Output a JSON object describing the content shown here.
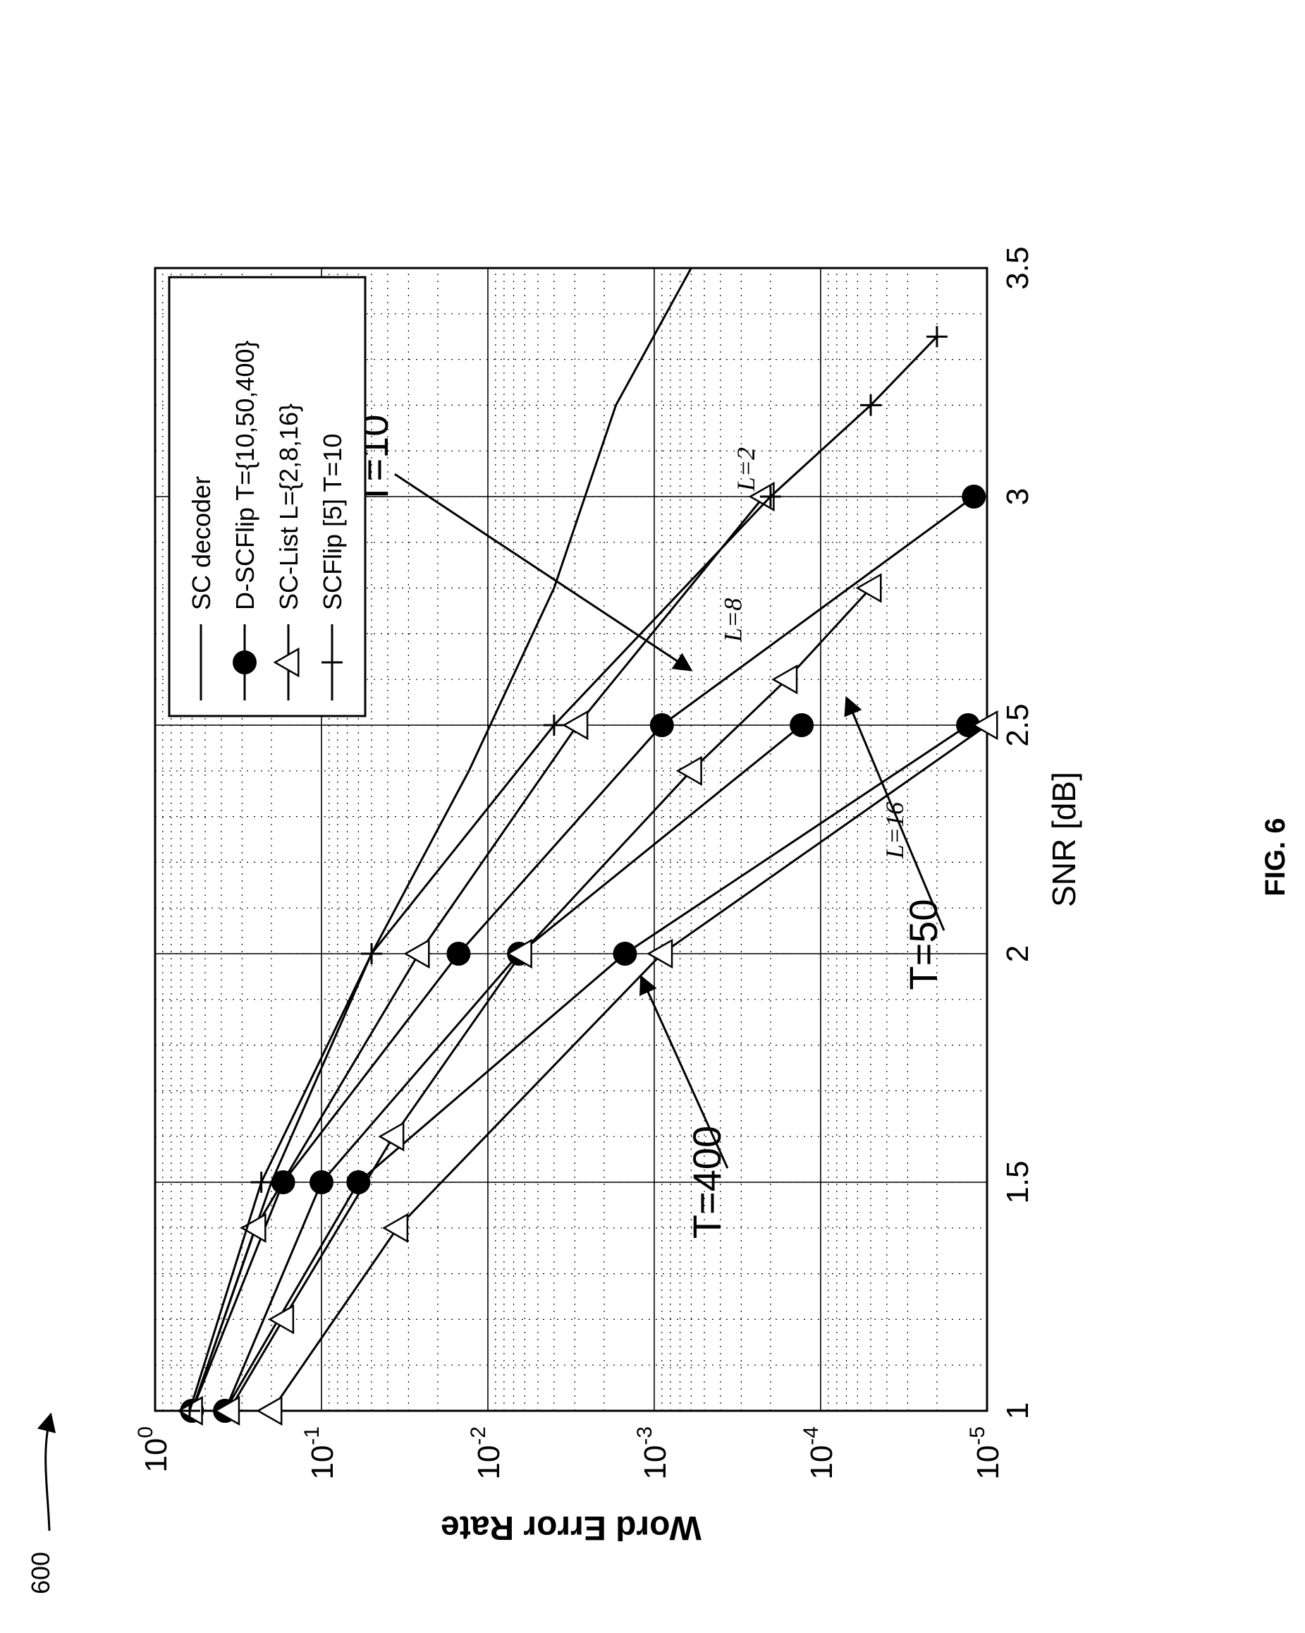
{
  "figure": {
    "number_label": "FIG. 6",
    "reference_numeral": "600"
  },
  "chart_data": {
    "type": "line",
    "xlabel": "SNR [dB]",
    "ylabel": "Word Error Rate",
    "xlim": [
      1,
      3.5
    ],
    "ylim": [
      1e-05,
      1
    ],
    "yscale": "log",
    "grid": true,
    "x_ticks": [
      "1",
      "1.5",
      "2",
      "2.5",
      "3",
      "3.5"
    ],
    "y_ticks": [
      {
        "base": "10",
        "exp": "0",
        "value": 1
      },
      {
        "base": "10",
        "exp": "-1",
        "value": 0.1
      },
      {
        "base": "10",
        "exp": "-2",
        "value": 0.01
      },
      {
        "base": "10",
        "exp": "-3",
        "value": 0.001
      },
      {
        "base": "10",
        "exp": "-4",
        "value": 0.0001
      },
      {
        "base": "10",
        "exp": "-5",
        "value": 1e-05
      }
    ],
    "legend": {
      "placement": "top-right",
      "entries": [
        {
          "label": "SC decoder",
          "marker": "none"
        },
        {
          "label": "D-SCFlip T={10,50,400}",
          "marker": "circle"
        },
        {
          "label": "SC-List L={2,8,16}",
          "marker": "triangle"
        },
        {
          "label": "SCFlip [5] T=10",
          "marker": "plus"
        }
      ]
    },
    "series": [
      {
        "group": "sc",
        "marker": "none",
        "x": [
          1,
          1.5,
          2,
          2.4,
          2.8,
          3.2,
          3.5
        ],
        "y": [
          0.6,
          0.2,
          0.05,
          0.013,
          0.004,
          0.0017,
          0.0006
        ]
      },
      {
        "group": "dscflip",
        "marker": "circle",
        "x": [
          1,
          1.5,
          2,
          2.5,
          3
        ],
        "y": [
          0.6,
          0.17,
          0.015,
          0.0009,
          1.2e-05
        ]
      },
      {
        "group": "dscflip",
        "marker": "circle",
        "x": [
          1,
          1.5,
          2,
          2.5
        ],
        "y": [
          0.38,
          0.1,
          0.0065,
          0.00013
        ]
      },
      {
        "group": "dscflip",
        "marker": "circle",
        "x": [
          1,
          1.5,
          2,
          2.5
        ],
        "y": [
          0.38,
          0.06,
          0.0015,
          1.3e-05
        ]
      },
      {
        "group": "sclist",
        "marker": "triangle",
        "x": [
          1,
          1.4,
          2,
          2.5,
          3
        ],
        "y": [
          0.6,
          0.25,
          0.026,
          0.0029,
          0.00022
        ]
      },
      {
        "group": "sclist",
        "marker": "triangle",
        "x": [
          1,
          1.2,
          1.6,
          2,
          2.4,
          2.6,
          2.8
        ],
        "y": [
          0.36,
          0.17,
          0.037,
          0.0063,
          0.0006,
          0.00016,
          5e-05
        ]
      },
      {
        "group": "sclist",
        "marker": "triangle",
        "x": [
          1,
          1.4,
          2,
          2.5
        ],
        "y": [
          0.2,
          0.035,
          0.0009,
          1e-05
        ]
      },
      {
        "group": "scflip",
        "marker": "plus",
        "x": [
          1,
          1.5,
          2,
          2.5,
          3,
          3.2,
          3.35
        ],
        "y": [
          0.62,
          0.23,
          0.05,
          0.004,
          0.0002,
          5e-05,
          2e-05
        ]
      }
    ],
    "annotations": [
      {
        "text": "T=10",
        "style": "plain",
        "label_x": 3.08,
        "label_y": 0.04,
        "arrow_to_x": 2.62,
        "arrow_to_y": 0.0006
      },
      {
        "text": "T=50",
        "style": "plain",
        "label_x": 2.02,
        "label_y": 2e-05,
        "arrow_to_x": 2.56,
        "arrow_to_y": 7e-05
      },
      {
        "text": "T=400",
        "style": "plain",
        "label_x": 1.5,
        "label_y": 0.0004,
        "arrow_to_x": 1.95,
        "arrow_to_y": 0.0012
      },
      {
        "text": "L=2",
        "style": "italic",
        "label_x": 3.06,
        "label_y": 0.00025
      },
      {
        "text": "L=8",
        "style": "italic",
        "label_x": 2.73,
        "label_y": 0.0003
      },
      {
        "text": "L=16",
        "style": "italic",
        "label_x": 2.27,
        "label_y": 3.2e-05
      }
    ]
  }
}
